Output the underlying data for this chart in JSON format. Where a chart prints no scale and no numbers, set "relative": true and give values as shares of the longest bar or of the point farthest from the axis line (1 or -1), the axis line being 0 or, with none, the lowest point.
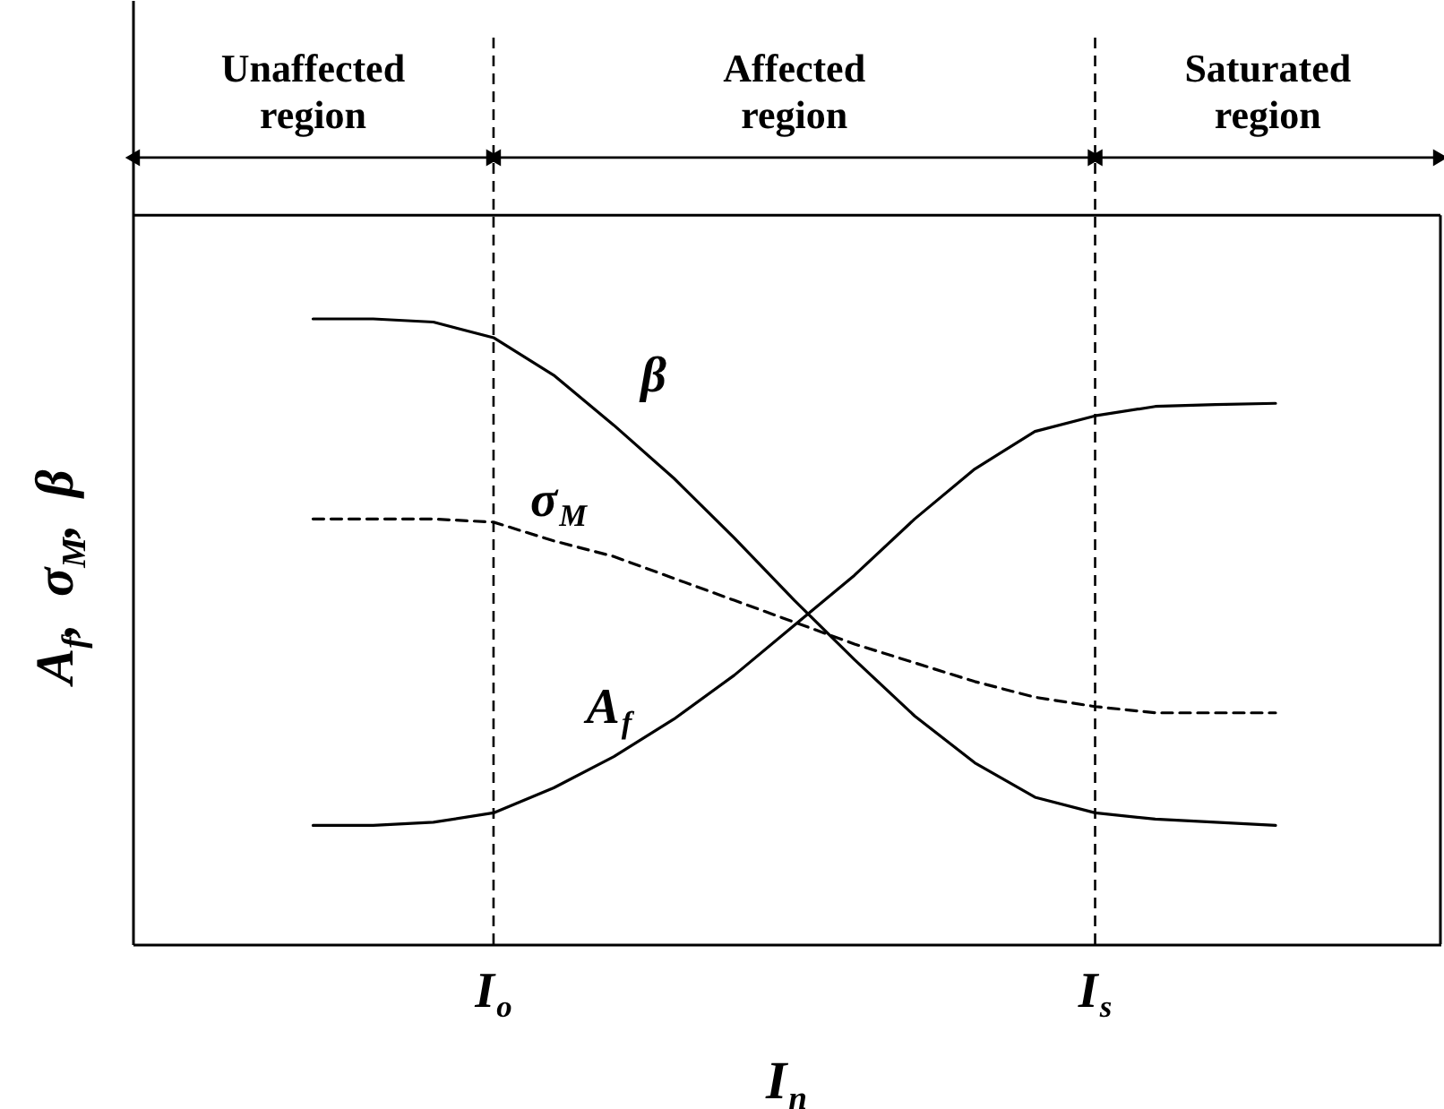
{
  "chart_data": {
    "type": "line",
    "relative": true,
    "xlabel": "I$_{n}$",
    "ylabel": "A$_{f}$,  σ$_{M}$,  β",
    "categories": [
      null,
      null,
      null,
      null,
      null,
      null,
      "I$_{o}$",
      null,
      null,
      null,
      null,
      null,
      null,
      null,
      null,
      null,
      "I$_{s}$",
      null,
      null,
      null,
      null,
      null
    ],
    "annotations": [
      "Unaffected region",
      "Affected region",
      "Saturated region"
    ],
    "ref_lines": [
      {
        "axis": "x",
        "value": "I$_{o}$",
        "color": "#000000",
        "line_style": "dashed"
      },
      {
        "axis": "x",
        "value": "I$_{s}$",
        "color": "#000000",
        "line_style": "dashed"
      }
    ],
    "series": [
      {
        "name": "β",
        "color": "#000000",
        "line_style": "solid",
        "values": [
          null,
          null,
          null,
          1,
          1,
          0.995,
          0.97,
          0.91,
          0.83,
          0.745,
          0.65,
          0.55,
          0.455,
          0.365,
          0.29,
          0.235,
          0.21,
          0.2,
          0.195,
          0.19,
          null,
          null
        ]
      },
      {
        "name": "σ$_{M}$",
        "color": "#000000",
        "line_style": "dashed",
        "values": [
          null,
          null,
          null,
          0.68,
          0.68,
          0.68,
          0.675,
          0.645,
          0.62,
          0.585,
          0.55,
          0.515,
          0.48,
          0.45,
          0.42,
          0.395,
          0.38,
          0.37,
          0.37,
          0.37,
          null,
          null
        ]
      },
      {
        "name": "A$_{f}$",
        "color": "#000000",
        "line_style": "solid",
        "values": [
          null,
          null,
          null,
          0.19,
          0.19,
          0.195,
          0.21,
          0.25,
          0.3,
          0.36,
          0.43,
          0.51,
          0.59,
          0.68,
          0.76,
          0.82,
          0.845,
          0.86,
          0.863,
          0.865,
          null,
          null
        ]
      }
    ],
    "grid": false
  }
}
